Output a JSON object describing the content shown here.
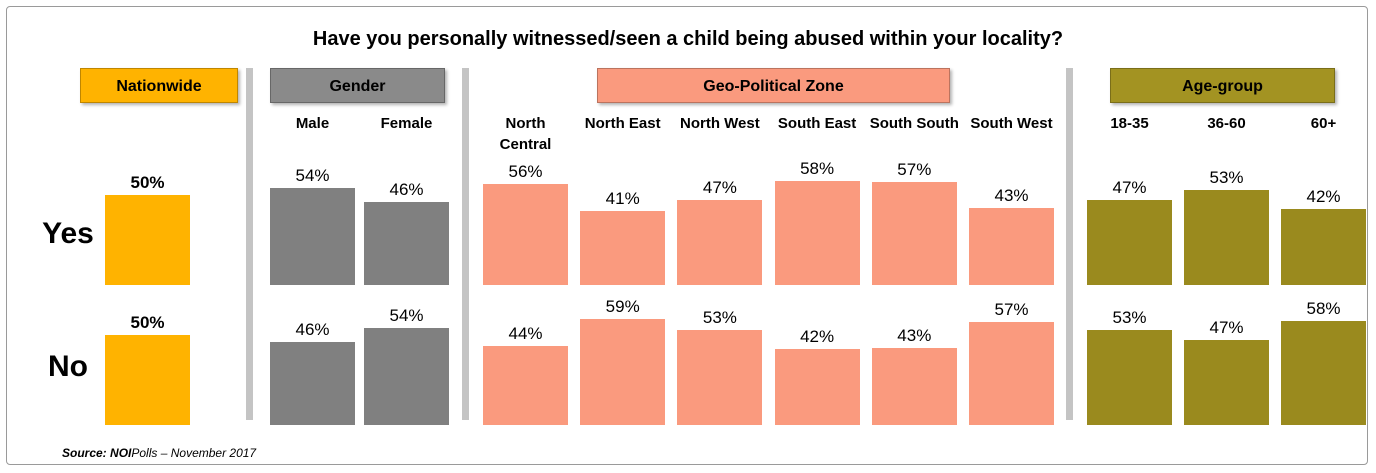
{
  "chart_data": {
    "type": "bar",
    "title": "Have you personally witnessed/seen a child being abused within your locality?",
    "series_names": [
      "Yes",
      "No"
    ],
    "groups": [
      {
        "name": "Nationwide",
        "color": "#ffb300",
        "header_color": "#ffb300",
        "categories": [
          null
        ],
        "values": [
          [
            50
          ],
          [
            50
          ]
        ],
        "value_labels": [
          [
            "50%"
          ],
          [
            "50%"
          ]
        ]
      },
      {
        "name": "Gender",
        "color": "#808080",
        "header_color": "#8a8a8a",
        "categories": [
          "Male",
          "Female"
        ],
        "values": [
          [
            54,
            46
          ],
          [
            46,
            54
          ]
        ],
        "value_labels": [
          [
            "54%",
            "46%"
          ],
          [
            "46%",
            "54%"
          ]
        ]
      },
      {
        "name": "Geo-Political Zone",
        "color": "#fa9a7e",
        "header_color": "#fa9a7e",
        "categories": [
          "North Central",
          "North East",
          "North West",
          "South East",
          "South South",
          "South West"
        ],
        "values": [
          [
            56,
            41,
            47,
            58,
            57,
            43
          ],
          [
            44,
            59,
            53,
            42,
            43,
            57
          ]
        ],
        "value_labels": [
          [
            "56%",
            "41%",
            "47%",
            "58%",
            "57%",
            "43%"
          ],
          [
            "44%",
            "59%",
            "53%",
            "42%",
            "43%",
            "57%"
          ]
        ]
      },
      {
        "name": "Age-group",
        "color": "#9a8a1e",
        "header_color": "#a39322",
        "categories": [
          "18-35",
          "36-60",
          "60+"
        ],
        "values": [
          [
            47,
            53,
            42
          ],
          [
            53,
            47,
            58
          ]
        ],
        "value_labels": [
          [
            "47%",
            "53%",
            "42%"
          ],
          [
            "53%",
            "47%",
            "58%"
          ]
        ]
      }
    ],
    "source": [
      "Source:",
      "NOI",
      "Polls – November 2017"
    ]
  }
}
